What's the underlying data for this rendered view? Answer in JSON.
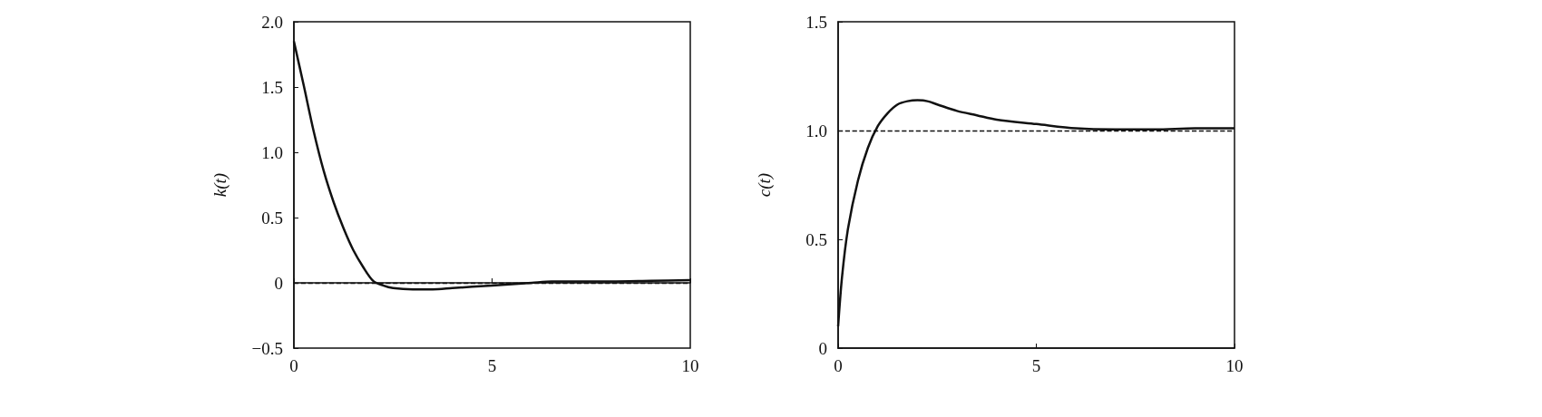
{
  "chart_data": [
    {
      "type": "line",
      "ylabel": "k(t)",
      "x": [
        0,
        0.25,
        0.5,
        0.75,
        1,
        1.25,
        1.5,
        1.75,
        2,
        2.25,
        2.5,
        3,
        3.5,
        4,
        5,
        6,
        6.5,
        7,
        8,
        9,
        10
      ],
      "series": [
        {
          "color": "#111111",
          "values": [
            1.85,
            1.51,
            1.16,
            0.86,
            0.62,
            0.42,
            0.25,
            0.12,
            0.015,
            -0.02,
            -0.04,
            -0.05,
            -0.05,
            -0.04,
            -0.02,
            0,
            0.01,
            0.01,
            0.01,
            0.015,
            0.02
          ]
        }
      ],
      "xlim": [
        0,
        10
      ],
      "xticks": [
        0,
        5,
        10
      ],
      "ylim": [
        -0.5,
        2
      ],
      "yticks": [
        {
          "value": -0.5,
          "label": "−0.5"
        },
        0,
        {
          "value": 0.5,
          "label": "0.5"
        },
        {
          "value": 1,
          "label": "1.0"
        },
        {
          "value": 1.5,
          "label": "1.5"
        },
        {
          "value": 2,
          "label": "2.0"
        }
      ],
      "ref_lines": [
        {
          "axis": "y",
          "value": 0,
          "color": "#111111",
          "line_style": "dashed"
        }
      ],
      "grid": false,
      "marker": "none",
      "line_style": "solid"
    },
    {
      "type": "line",
      "ylabel": "c(t)",
      "x": [
        0,
        0.1,
        0.25,
        0.5,
        0.75,
        1,
        1.25,
        1.5,
        1.75,
        2,
        2.25,
        2.5,
        3,
        3.5,
        4,
        5,
        6,
        7,
        8,
        9,
        10
      ],
      "series": [
        {
          "color": "#111111",
          "values": [
            0.1,
            0.33,
            0.55,
            0.77,
            0.92,
            1.02,
            1.08,
            1.12,
            1.135,
            1.14,
            1.135,
            1.12,
            1.09,
            1.07,
            1.05,
            1.03,
            1.01,
            1.005,
            1.005,
            1.01,
            1.01
          ]
        }
      ],
      "xlim": [
        0,
        10
      ],
      "xticks": [
        0,
        5,
        10
      ],
      "ylim": [
        0,
        1.5
      ],
      "yticks": [
        0,
        {
          "value": 0.5,
          "label": "0.5"
        },
        {
          "value": 1,
          "label": "1.0"
        },
        {
          "value": 1.5,
          "label": "1.5"
        }
      ],
      "ref_lines": [
        {
          "axis": "y",
          "value": 1,
          "color": "#111111",
          "line_style": "dashed"
        }
      ],
      "grid": false,
      "marker": "none",
      "line_style": "solid"
    }
  ]
}
